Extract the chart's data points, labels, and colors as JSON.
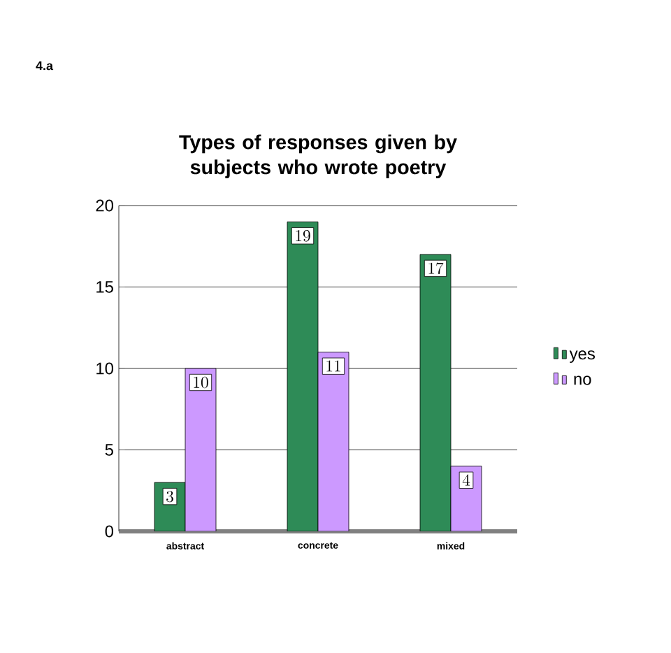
{
  "chart_data": {
    "type": "bar",
    "title": "Types of responses given by subjects who wrote poetry",
    "categories": [
      "abstract",
      "concrete",
      "mixed"
    ],
    "series": [
      {
        "name": "yes",
        "color": "#2e8b57",
        "values": [
          3,
          19,
          17
        ]
      },
      {
        "name": "no",
        "color": "#cc99ff",
        "values": [
          10,
          11,
          4
        ]
      }
    ],
    "ylim": [
      0,
      20
    ],
    "yticks": [
      0,
      5,
      10,
      15,
      20
    ],
    "grid": "y",
    "legend": "right",
    "data_labels": true,
    "annotations": [
      "4.a"
    ]
  }
}
